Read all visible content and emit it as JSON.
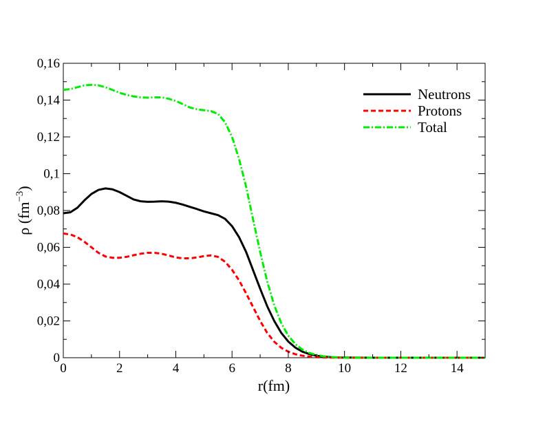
{
  "chart_data": {
    "type": "line",
    "xlabel": "r(fm)",
    "ylabel": {
      "base": "ρ (fm",
      "sup": "−3",
      "close": ")"
    },
    "xlim": [
      0,
      15
    ],
    "ylim": [
      0,
      0.16
    ],
    "x_ticks": [
      0,
      2,
      4,
      6,
      8,
      10,
      12,
      14
    ],
    "x_tick_labels": [
      "0",
      "2",
      "4",
      "6",
      "8",
      "10",
      "12",
      "14"
    ],
    "y_ticks": [
      0,
      0.02,
      0.04,
      0.06,
      0.08,
      0.1,
      0.12,
      0.14,
      0.16
    ],
    "y_tick_labels": [
      "0",
      "0,02",
      "0,04",
      "0,06",
      "0,08",
      "0,1",
      "0,12",
      "0,14",
      "0,16"
    ],
    "grid": false,
    "legend_position": "top-right",
    "series": [
      {
        "name": "Neutrons",
        "color": "#000000",
        "style": "solid",
        "x": [
          0,
          0.25,
          0.5,
          0.75,
          1,
          1.25,
          1.5,
          1.75,
          2,
          2.25,
          2.5,
          2.75,
          3,
          3.25,
          3.5,
          3.75,
          4,
          4.25,
          4.5,
          4.75,
          5,
          5.25,
          5.5,
          5.75,
          6,
          6.25,
          6.5,
          6.75,
          7,
          7.25,
          7.5,
          7.75,
          8,
          8.25,
          8.5,
          8.75,
          9,
          9.25,
          9.5,
          9.75,
          10,
          10.5,
          11,
          12,
          13,
          14,
          15
        ],
        "y": [
          0.0785,
          0.079,
          0.0815,
          0.0855,
          0.089,
          0.0912,
          0.092,
          0.0915,
          0.09,
          0.088,
          0.086,
          0.085,
          0.0847,
          0.0848,
          0.085,
          0.0848,
          0.0842,
          0.0832,
          0.082,
          0.0808,
          0.0795,
          0.0785,
          0.0775,
          0.0755,
          0.0715,
          0.0655,
          0.0575,
          0.0475,
          0.0375,
          0.028,
          0.02,
          0.0135,
          0.0088,
          0.0055,
          0.0033,
          0.002,
          0.0011,
          0.0006,
          0.0003,
          0.00015,
          0.0001,
          5e-05,
          2e-05,
          0,
          0,
          0,
          0
        ]
      },
      {
        "name": "Protons",
        "color": "#ff0000",
        "style": "dashed",
        "x": [
          0,
          0.25,
          0.5,
          0.75,
          1,
          1.25,
          1.5,
          1.75,
          2,
          2.25,
          2.5,
          2.75,
          3,
          3.25,
          3.5,
          3.75,
          4,
          4.25,
          4.5,
          4.75,
          5,
          5.25,
          5.5,
          5.75,
          6,
          6.25,
          6.5,
          6.75,
          7,
          7.25,
          7.5,
          7.75,
          8,
          8.25,
          8.5,
          8.75,
          9,
          9.25,
          9.5,
          9.75,
          10,
          10.5,
          11,
          12,
          13,
          14,
          15
        ],
        "y": [
          0.0675,
          0.067,
          0.0655,
          0.063,
          0.06,
          0.057,
          0.055,
          0.0543,
          0.0543,
          0.0548,
          0.0557,
          0.0565,
          0.057,
          0.057,
          0.0565,
          0.0555,
          0.0545,
          0.054,
          0.054,
          0.0545,
          0.0552,
          0.0556,
          0.0548,
          0.0522,
          0.0478,
          0.042,
          0.035,
          0.0275,
          0.02,
          0.0135,
          0.0087,
          0.0054,
          0.0033,
          0.0019,
          0.0011,
          0.0006,
          0.0003,
          0.00015,
          0.0001,
          5e-05,
          2e-05,
          0,
          0,
          0,
          0,
          0,
          0
        ]
      },
      {
        "name": "Total",
        "color": "#00ee00",
        "style": "dashdot",
        "x": [
          0,
          0.25,
          0.5,
          0.75,
          1,
          1.25,
          1.5,
          1.75,
          2,
          2.25,
          2.5,
          2.75,
          3,
          3.25,
          3.5,
          3.75,
          4,
          4.25,
          4.5,
          4.75,
          5,
          5.25,
          5.5,
          5.75,
          6,
          6.25,
          6.5,
          6.75,
          7,
          7.25,
          7.5,
          7.75,
          8,
          8.25,
          8.5,
          8.75,
          9,
          9.25,
          9.5,
          9.75,
          10,
          10.5,
          11,
          12,
          13,
          14,
          15
        ],
        "y": [
          0.1455,
          0.146,
          0.147,
          0.148,
          0.1483,
          0.148,
          0.147,
          0.1455,
          0.144,
          0.1428,
          0.142,
          0.1415,
          0.1413,
          0.1415,
          0.1415,
          0.1407,
          0.1395,
          0.1378,
          0.136,
          0.135,
          0.1345,
          0.134,
          0.1325,
          0.128,
          0.12,
          0.108,
          0.093,
          0.075,
          0.0575,
          0.0415,
          0.0285,
          0.0188,
          0.012,
          0.0074,
          0.0044,
          0.0026,
          0.0015,
          0.0008,
          0.0004,
          0.0002,
          0.0001,
          5e-05,
          2e-05,
          0,
          0,
          0,
          0
        ]
      }
    ]
  }
}
